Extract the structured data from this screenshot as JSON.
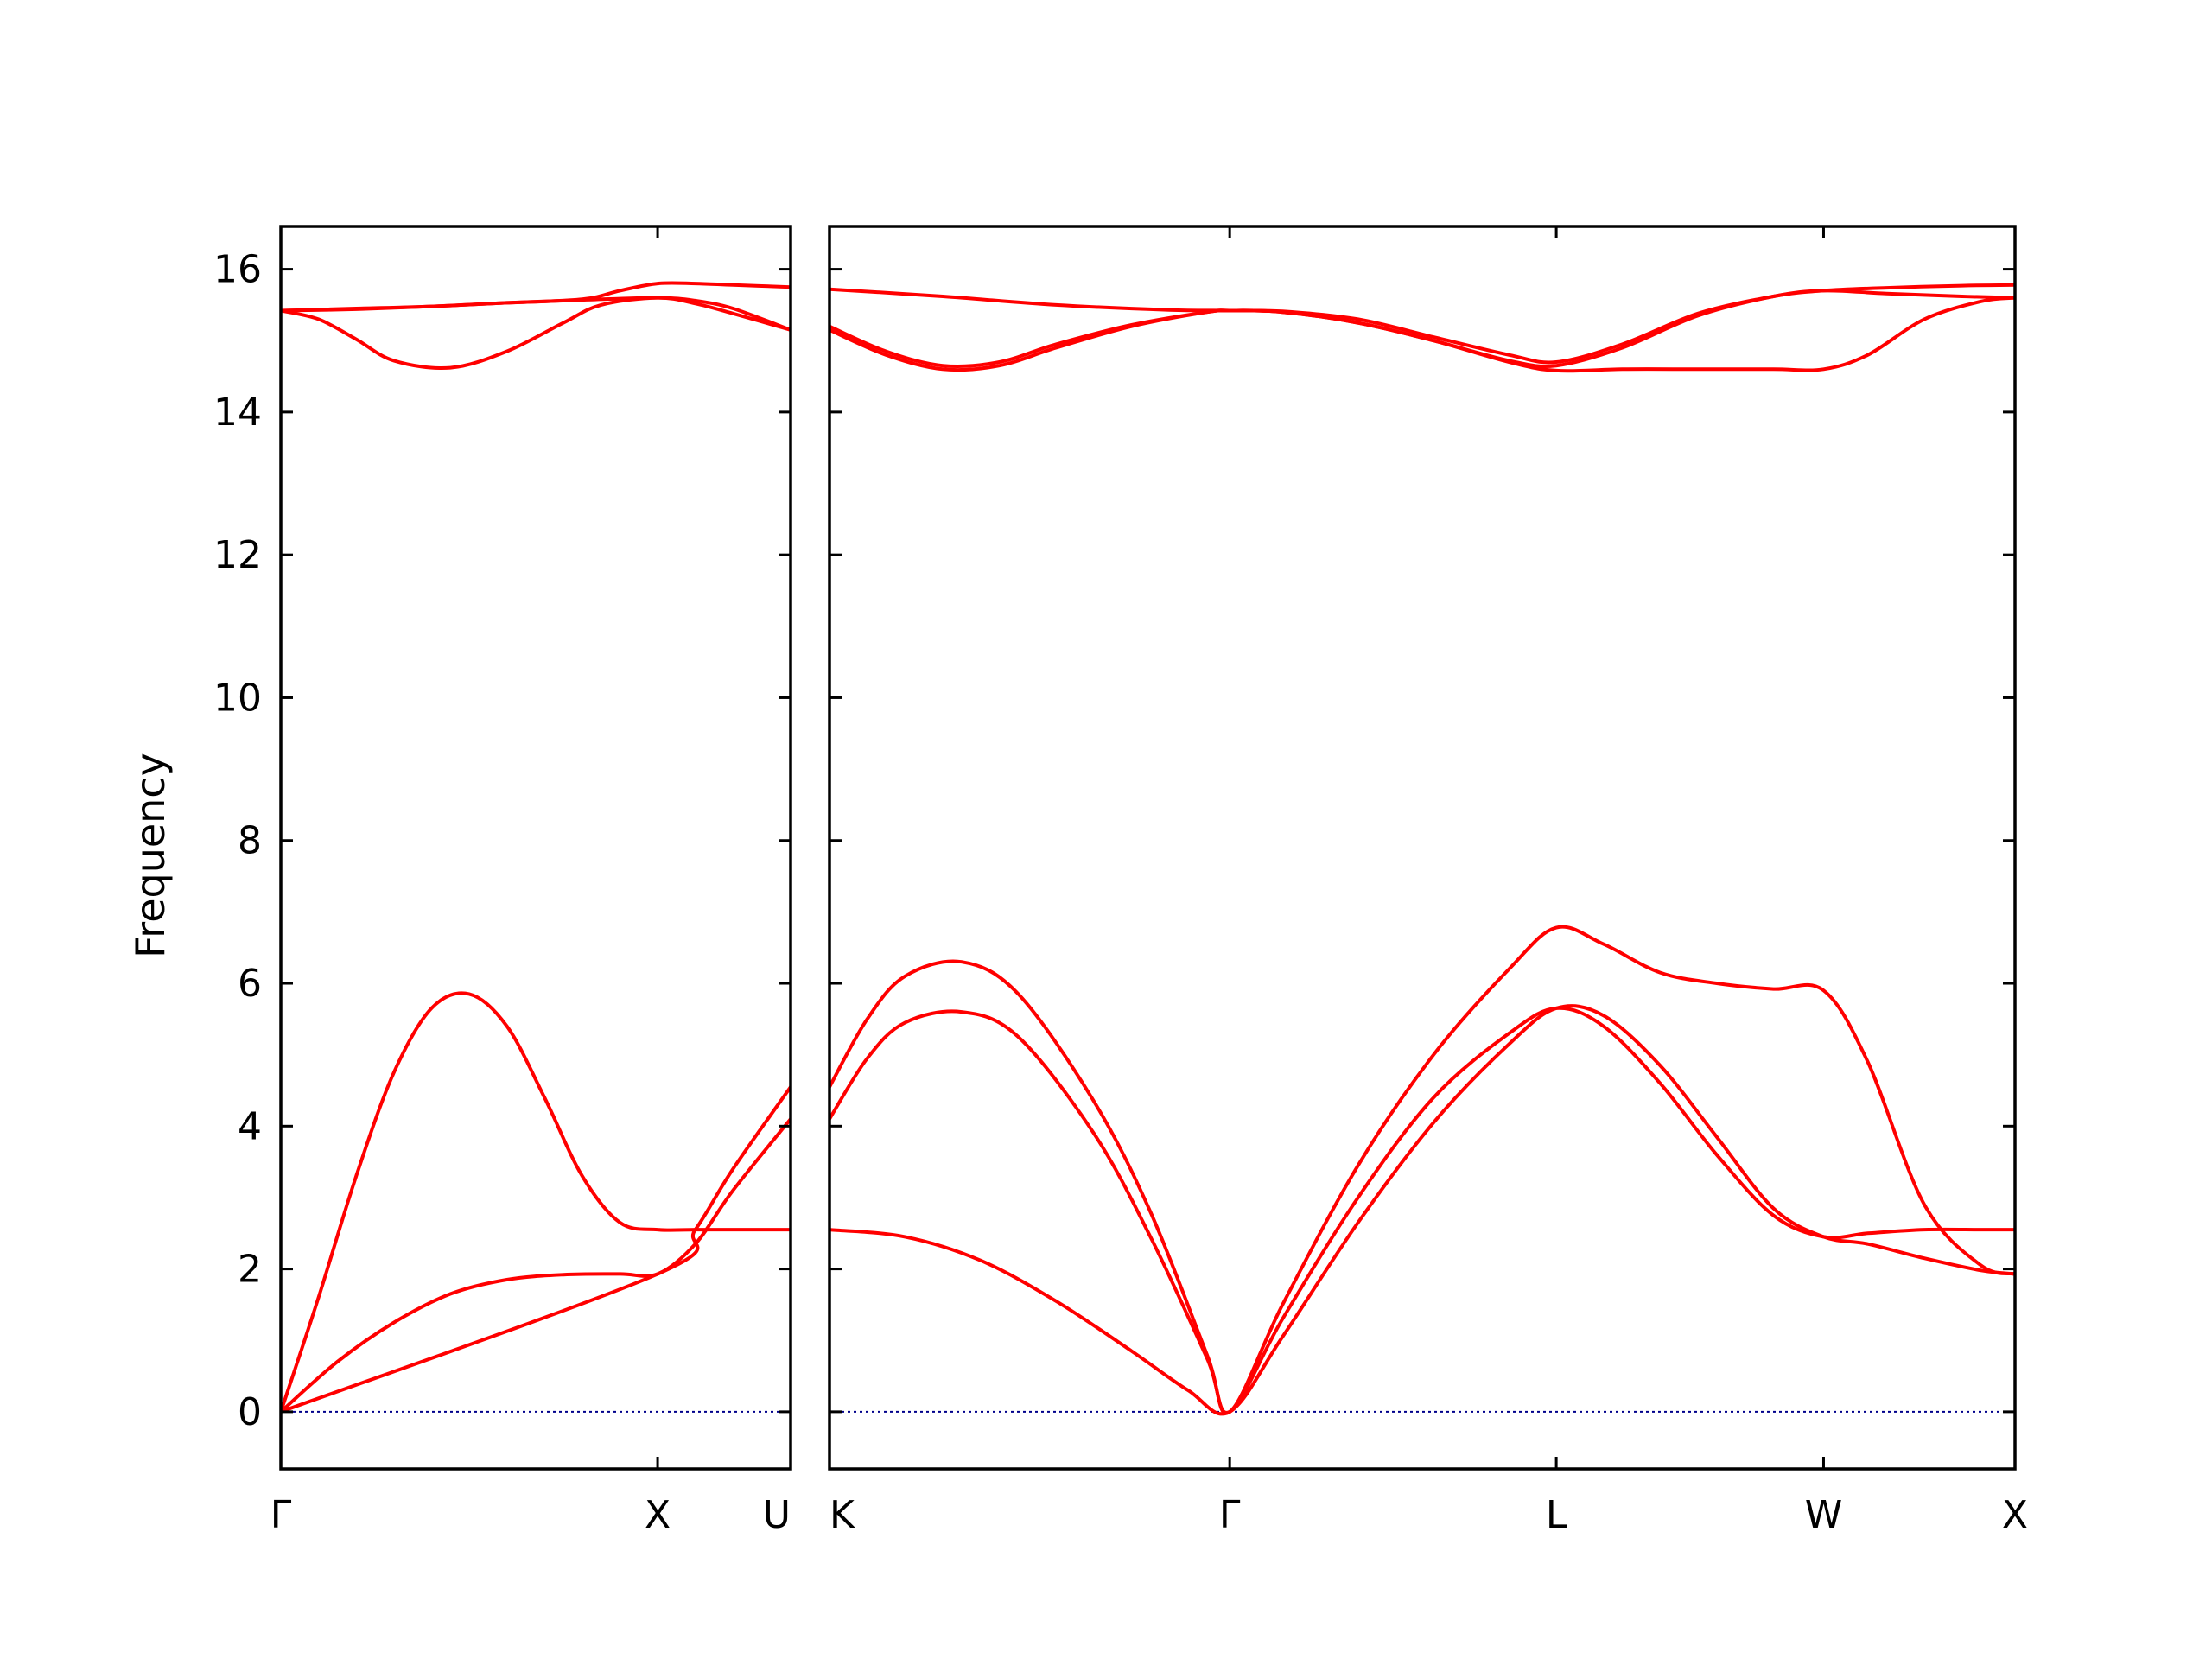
{
  "chart_data": {
    "type": "line",
    "ylabel": "Frequency",
    "ylim": [
      -0.8,
      16.6
    ],
    "yticks": [
      0,
      2,
      4,
      6,
      8,
      10,
      12,
      14,
      16
    ],
    "colors": {
      "bands": "#ff0000",
      "zero_line": "#00008b"
    },
    "panels": [
      {
        "path": "Γ–X–U",
        "xlim": [
          0,
          1.353
        ],
        "qpoint_ticks": [
          {
            "x": 0,
            "label": "Γ"
          },
          {
            "x": 1.0,
            "label": "X"
          },
          {
            "x": 1.353,
            "label": "U"
          }
        ],
        "series": [
          {
            "x": [
              0,
              0.15,
              0.3,
              0.45,
              0.6,
              0.75,
              0.9,
              1.0,
              1.1,
              1.2,
              1.353
            ],
            "y": [
              0,
              0.7,
              1.25,
              1.65,
              1.85,
              1.92,
              1.93,
              1.93,
              2.35,
              3.1,
              4.1
            ]
          },
          {
            "x": [
              0,
              0.1,
              0.2,
              0.3,
              0.4,
              0.5,
              0.6,
              0.7,
              0.8,
              0.9,
              1.0,
              1.1,
              1.2,
              1.353
            ],
            "y": [
              0,
              1.6,
              3.3,
              4.75,
              5.65,
              5.85,
              5.4,
              4.4,
              3.3,
              2.65,
              2.55,
              2.55,
              2.55,
              2.55
            ]
          },
          {
            "x": [
              0,
              1.0,
              1.1,
              1.2,
              1.353
            ],
            "y": [
              0,
              1.93,
              2.55,
              3.4,
              4.55
            ]
          },
          {
            "x": [
              0,
              0.1,
              0.2,
              0.3,
              0.45,
              0.6,
              0.75,
              0.85,
              1.0,
              1.1,
              1.2,
              1.353
            ],
            "y": [
              15.42,
              15.3,
              15.02,
              14.72,
              14.62,
              14.85,
              15.25,
              15.5,
              15.6,
              15.52,
              15.38,
              15.15
            ]
          },
          {
            "x": [
              0,
              0.2,
              0.4,
              0.6,
              0.8,
              1.0,
              1.1,
              1.2,
              1.353
            ],
            "y": [
              15.42,
              15.45,
              15.48,
              15.53,
              15.57,
              15.6,
              15.56,
              15.45,
              15.15
            ]
          },
          {
            "x": [
              0,
              0.2,
              0.4,
              0.6,
              0.8,
              0.9,
              1.0,
              1.1,
              1.2,
              1.353
            ],
            "y": [
              15.42,
              15.44,
              15.48,
              15.53,
              15.58,
              15.7,
              15.8,
              15.8,
              15.78,
              15.75
            ]
          }
        ]
      },
      {
        "path": "K–Γ–L–W–X",
        "xlim": [
          0,
          3.14
        ],
        "qpoint_ticks": [
          {
            "x": 0,
            "label": "K"
          },
          {
            "x": 1.06,
            "label": "Γ"
          },
          {
            "x": 1.925,
            "label": "L"
          },
          {
            "x": 2.633,
            "label": "W"
          },
          {
            "x": 3.14,
            "label": "X"
          }
        ],
        "series": [
          {
            "x": [
              0,
              0.2,
              0.4,
              0.6,
              0.8,
              0.95,
              1.06,
              1.2,
              1.4,
              1.6,
              1.8,
              1.925,
              2.05,
              2.2,
              2.35,
              2.5,
              2.633,
              2.75,
              2.9,
              3.05,
              3.14
            ],
            "y": [
              2.55,
              2.45,
              2.12,
              1.55,
              0.85,
              0.3,
              0,
              1.05,
              2.65,
              4.05,
              5.15,
              5.65,
              5.55,
              4.85,
              3.85,
              2.85,
              2.45,
              2.35,
              2.15,
              1.98,
              1.93
            ]
          },
          {
            "x": [
              0,
              0.1,
              0.2,
              0.35,
              0.5,
              0.7,
              0.85,
              1.0,
              1.06,
              1.2,
              1.4,
              1.6,
              1.8,
              1.925,
              2.05,
              2.2,
              2.35,
              2.5,
              2.633,
              2.75,
              2.9,
              3.05,
              3.14
            ],
            "y": [
              4.1,
              4.95,
              5.45,
              5.6,
              5.25,
              3.9,
              2.45,
              0.75,
              0,
              1.3,
              3.0,
              4.4,
              5.3,
              5.65,
              5.4,
              4.6,
              3.6,
              2.75,
              2.45,
              2.5,
              2.55,
              2.55,
              2.55
            ]
          },
          {
            "x": [
              0,
              0.1,
              0.2,
              0.35,
              0.5,
              0.7,
              0.85,
              1.0,
              1.06,
              1.2,
              1.4,
              1.6,
              1.8,
              1.925,
              2.05,
              2.2,
              2.35,
              2.5,
              2.633,
              2.75,
              2.9,
              3.05,
              3.14
            ],
            "y": [
              4.55,
              5.5,
              6.1,
              6.3,
              5.85,
              4.35,
              2.8,
              0.8,
              0,
              1.5,
              3.45,
              5.0,
              6.2,
              6.78,
              6.55,
              6.15,
              6.0,
              5.92,
              5.9,
              4.9,
              2.9,
              2.05,
              1.93
            ]
          },
          {
            "x": [
              0,
              0.15,
              0.3,
              0.45,
              0.6,
              0.8,
              1.0,
              1.06,
              1.2,
              1.4,
              1.6,
              1.8,
              1.925,
              2.1,
              2.3,
              2.5,
              2.633,
              2.75,
              2.9,
              3.05,
              3.14
            ],
            "y": [
              15.15,
              14.8,
              14.6,
              14.65,
              14.9,
              15.2,
              15.4,
              15.42,
              15.4,
              15.25,
              15.0,
              14.7,
              14.58,
              14.6,
              14.6,
              14.6,
              14.6,
              14.8,
              15.3,
              15.55,
              15.6
            ]
          },
          {
            "x": [
              0,
              0.15,
              0.3,
              0.45,
              0.6,
              0.8,
              1.0,
              1.06,
              1.2,
              1.4,
              1.6,
              1.8,
              1.925,
              2.1,
              2.3,
              2.5,
              2.633,
              2.8,
              3.0,
              3.14
            ],
            "y": [
              15.2,
              14.85,
              14.65,
              14.7,
              14.95,
              15.22,
              15.4,
              15.42,
              15.4,
              15.25,
              15.0,
              14.72,
              14.65,
              14.9,
              15.35,
              15.62,
              15.7,
              15.66,
              15.62,
              15.6
            ]
          },
          {
            "x": [
              0,
              0.3,
              0.6,
              0.9,
              1.06,
              1.2,
              1.4,
              1.6,
              1.8,
              1.925,
              2.1,
              2.3,
              2.5,
              2.633,
              2.8,
              3.0,
              3.14
            ],
            "y": [
              15.72,
              15.62,
              15.5,
              15.43,
              15.42,
              15.41,
              15.3,
              15.05,
              14.8,
              14.7,
              14.95,
              15.38,
              15.62,
              15.7,
              15.74,
              15.77,
              15.78
            ]
          }
        ]
      }
    ]
  }
}
